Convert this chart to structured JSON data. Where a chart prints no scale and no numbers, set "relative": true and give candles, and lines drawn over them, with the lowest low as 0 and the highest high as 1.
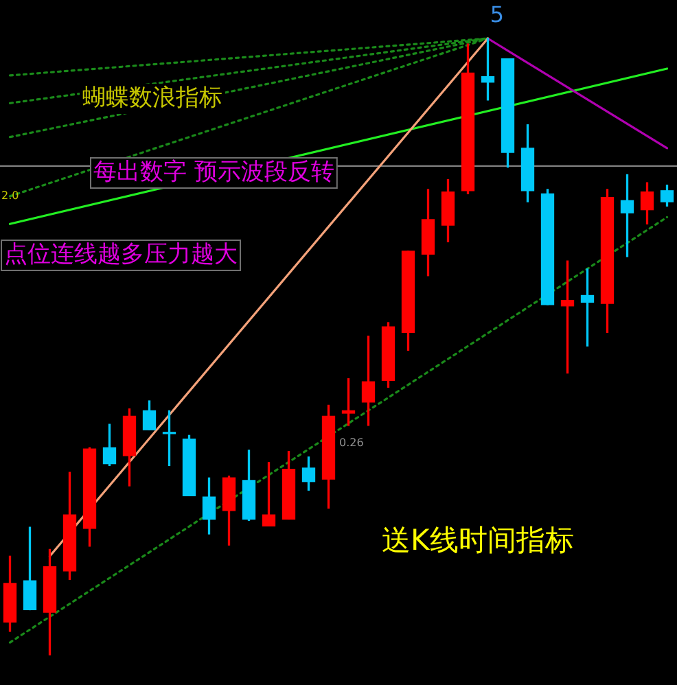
{
  "chart_data": {
    "type": "candlestick",
    "relative": true,
    "tick_labels": false,
    "categories": [
      null,
      null,
      null,
      null,
      null,
      null,
      null,
      null,
      null,
      null,
      null,
      null,
      null,
      null,
      null,
      null,
      null,
      null,
      null,
      null,
      null,
      null,
      null,
      null,
      null,
      null,
      null,
      null,
      null,
      null,
      null,
      null,
      null,
      null
    ],
    "ohlc": [
      [
        0.053,
        0.16,
        0.038,
        0.116
      ],
      [
        0.12,
        0.207,
        0.073,
        0.073
      ],
      [
        0.069,
        0.171,
        0,
        0.143
      ],
      [
        0.136,
        0.296,
        0.122,
        0.227
      ],
      [
        0.205,
        0.336,
        0.176,
        0.334
      ],
      [
        0.336,
        0.374,
        0.307,
        0.31
      ],
      [
        0.323,
        0.399,
        0.274,
        0.387
      ],
      [
        0.396,
        0.412,
        0.365,
        0.365
      ],
      [
        0.361,
        0.396,
        0.307,
        0.361
      ],
      [
        0.35,
        0.356,
        0.258,
        0.258
      ],
      [
        0.256,
        0.287,
        0.196,
        0.22
      ],
      [
        0.234,
        0.29,
        0.178,
        0.287
      ],
      [
        0.283,
        0.332,
        0.218,
        0.22
      ],
      [
        0.209,
        0.312,
        0.209,
        0.227
      ],
      [
        0.22,
        0.33,
        0.22,
        0.301
      ],
      [
        0.303,
        0.321,
        0.267,
        0.281
      ],
      [
        0.285,
        0.405,
        0.238,
        0.387
      ],
      [
        0.392,
        0.448,
        0.372,
        0.396
      ],
      [
        0.41,
        0.517,
        0.372,
        0.443
      ],
      [
        0.445,
        0.539,
        0.434,
        0.532
      ],
      [
        0.523,
        0.655,
        0.494,
        0.655
      ],
      [
        0.65,
        0.755,
        0.615,
        0.706
      ],
      [
        0.697,
        0.771,
        0.67,
        0.751
      ],
      [
        0.753,
        0.991,
        0.748,
        0.944
      ],
      [
        0.938,
        1,
        0.9,
        0.929
      ],
      [
        0.967,
        0.967,
        0.791,
        0.815
      ],
      [
        0.822,
        0.86,
        0.735,
        0.753
      ],
      [
        0.748,
        0.755,
        0.568,
        0.568
      ],
      [
        0.566,
        0.639,
        0.457,
        0.575
      ],
      [
        0.583,
        0.626,
        0.501,
        0.572
      ],
      [
        0.57,
        0.755,
        0.523,
        0.742
      ],
      [
        0.737,
        0.779,
        0.646,
        0.717
      ],
      [
        0.722,
        0.766,
        0.699,
        0.751
      ],
      [
        0.753,
        0.762,
        0.728,
        0.735
      ]
    ],
    "colors": [
      "#ff0000",
      "#00c8f8",
      "#ff0000",
      "#ff0000",
      "#ff0000",
      "#00c8f8",
      "#ff0000",
      "#00c8f8",
      "#00c8f8",
      "#00c8f8",
      "#00c8f8",
      "#ff0000",
      "#00c8f8",
      "#ff0000",
      "#ff0000",
      "#00c8f8",
      "#ff0000",
      "#ff0000",
      "#ff0000",
      "#ff0000",
      "#ff0000",
      "#ff0000",
      "#ff0000",
      "#ff0000",
      "#00c8f8",
      "#00c8f8",
      "#00c8f8",
      "#00c8f8",
      "#ff0000",
      "#00c8f8",
      "#ff0000",
      "#00c8f8",
      "#ff0000",
      "#00c8f8"
    ],
    "series": [
      {
        "type": "line",
        "color": "#f4a27a",
        "line_style": "solid",
        "values": [
          null,
          null,
          0.16,
          null,
          null,
          null,
          null,
          null,
          null,
          null,
          null,
          null,
          null,
          null,
          null,
          null,
          null,
          null,
          null,
          null,
          null,
          null,
          null,
          null,
          1,
          null,
          null,
          null,
          null,
          null,
          null,
          null,
          null,
          null
        ]
      },
      {
        "type": "line",
        "color": "#b000b0",
        "line_style": "solid",
        "values": [
          null,
          null,
          null,
          null,
          null,
          null,
          null,
          null,
          null,
          null,
          null,
          null,
          null,
          null,
          null,
          null,
          null,
          null,
          null,
          null,
          null,
          null,
          null,
          null,
          1,
          null,
          null,
          null,
          null,
          null,
          null,
          null,
          null,
          0.822
        ]
      },
      {
        "type": "line",
        "color": "#22ee22",
        "line_style": "solid",
        "values": [
          0.699,
          null,
          null,
          null,
          null,
          null,
          null,
          null,
          null,
          null,
          null,
          null,
          null,
          null,
          null,
          null,
          null,
          null,
          null,
          null,
          null,
          null,
          null,
          null,
          null,
          null,
          null,
          null,
          null,
          null,
          null,
          null,
          null,
          0.951
        ]
      },
      {
        "type": "line",
        "color": "#1a8a1a",
        "line_style": "dotted",
        "values": [
          0.02,
          null,
          null,
          null,
          null,
          null,
          null,
          null,
          null,
          null,
          null,
          null,
          null,
          null,
          null,
          null,
          null,
          null,
          null,
          null,
          null,
          null,
          null,
          null,
          null,
          null,
          null,
          null,
          null,
          null,
          null,
          null,
          null,
          0.71
        ]
      },
      {
        "type": "line",
        "color": "#1a8a1a",
        "line_style": "dotted",
        "values": [
          0.94,
          null,
          null,
          null,
          null,
          null,
          null,
          null,
          null,
          null,
          null,
          null,
          null,
          null,
          null,
          null,
          null,
          null,
          null,
          null,
          null,
          null,
          null,
          null,
          1,
          null,
          null,
          null,
          null,
          null,
          null,
          null,
          null,
          null
        ]
      },
      {
        "type": "line",
        "color": "#1a8a1a",
        "line_style": "dotted",
        "values": [
          0.895,
          null,
          null,
          null,
          null,
          null,
          null,
          null,
          null,
          null,
          null,
          null,
          null,
          null,
          null,
          null,
          null,
          null,
          null,
          null,
          null,
          null,
          null,
          null,
          1,
          null,
          null,
          null,
          null,
          null,
          null,
          null,
          null,
          null
        ]
      },
      {
        "type": "line",
        "color": "#1a8a1a",
        "line_style": "dotted",
        "values": [
          0.84,
          null,
          null,
          null,
          null,
          null,
          null,
          null,
          null,
          null,
          null,
          null,
          null,
          null,
          null,
          null,
          null,
          null,
          null,
          null,
          null,
          null,
          null,
          null,
          1,
          null,
          null,
          null,
          null,
          null,
          null,
          null,
          null,
          null
        ]
      },
      {
        "type": "line",
        "color": "#1a8a1a",
        "line_style": "dotted",
        "values": [
          0.744,
          null,
          null,
          null,
          null,
          null,
          null,
          null,
          null,
          null,
          null,
          null,
          null,
          null,
          null,
          null,
          null,
          null,
          null,
          null,
          null,
          null,
          null,
          null,
          1,
          null,
          null,
          null,
          null,
          null,
          null,
          null,
          null,
          null
        ]
      }
    ],
    "ref_lines": [
      {
        "axis": "y",
        "value": 0.793,
        "color": "#808080"
      }
    ],
    "annotations": [
      "蝴蝶数浪指标",
      "每出数字 预示波段反转",
      "点位连线越多压力越大",
      "送K线时间指标",
      "5",
      "2.0",
      "0.26"
    ]
  }
}
